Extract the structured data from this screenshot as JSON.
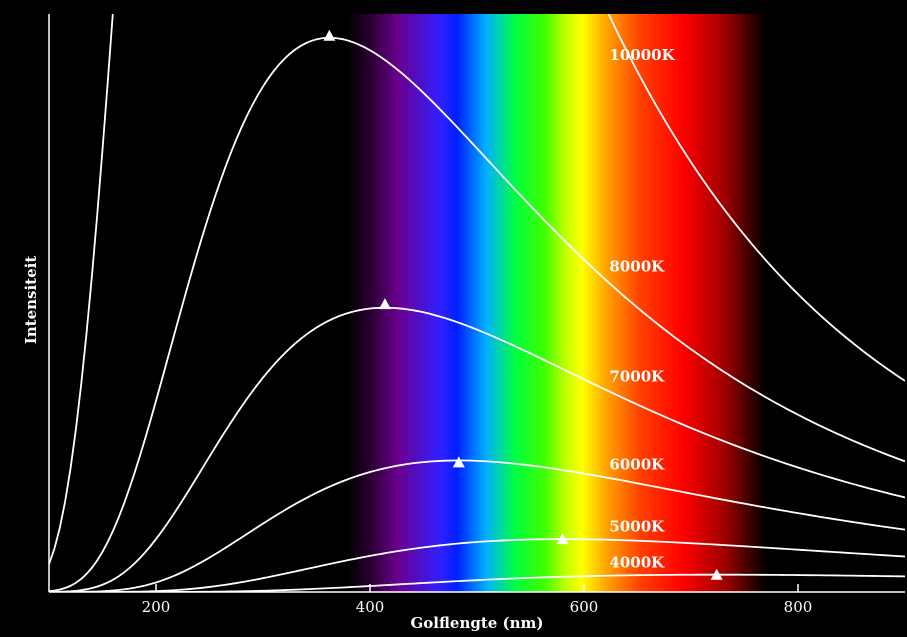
{
  "chart_data": {
    "type": "line",
    "title": "",
    "xlabel": "Golflengte (nm)",
    "ylabel": "Intensiteit",
    "xlim": [
      100,
      900
    ],
    "x_ticks": [
      200,
      400,
      600,
      800
    ],
    "y_ticks_shown": false,
    "grid": false,
    "legend": "none",
    "spectrum_band_nm": [
      380,
      770
    ],
    "x_step_nm": 5,
    "series": [
      {
        "name": "10000K",
        "label_nm": 620
      },
      {
        "name": "8000K",
        "label_nm": 620
      },
      {
        "name": "7000K",
        "label_nm": 620
      },
      {
        "name": "6000K",
        "label_nm": 620
      },
      {
        "name": "5000K",
        "label_nm": 620
      },
      {
        "name": "4000K",
        "label_nm": 620
      }
    ],
    "peaks": [
      {
        "series": "8000K",
        "x": 362,
        "y": 1.03
      },
      {
        "series": "7000K",
        "x": 414,
        "y": 0.533
      },
      {
        "series": "6000K",
        "x": 483,
        "y": 0.24
      },
      {
        "series": "5000K",
        "x": 580,
        "y": 0.098
      },
      {
        "series": "4000K",
        "x": 724,
        "y": 0.032
      }
    ],
    "colors": {
      "background": "#000000",
      "curve": "#ffffff",
      "axis": "#ffffff",
      "peak_marker": "#ffffff"
    }
  }
}
